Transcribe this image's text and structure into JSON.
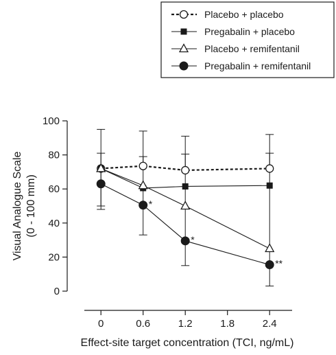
{
  "chart_data": {
    "type": "line",
    "title": "",
    "xlabel": "Effect-site target concentration (TCI, ng/mL)",
    "ylabel_lines": [
      "Visual Analogue Scale",
      "(0 - 100 mm)"
    ],
    "x_ticks": [
      "0",
      "0.6",
      "1.2",
      "1.8",
      "2.4"
    ],
    "y_ticks": [
      "0",
      "20",
      "40",
      "60",
      "80",
      "100"
    ],
    "xlim": [
      -0.48,
      2.72
    ],
    "ylim": [
      0,
      100
    ],
    "grid": false,
    "legend_position": "top-right",
    "series": [
      {
        "name": "Placebo + placebo",
        "marker": "open-circle",
        "line": "dashed",
        "x": [
          0,
          0.6,
          1.2,
          2.4
        ],
        "y": [
          72,
          73.5,
          71,
          72
        ],
        "err_upper": [
          95,
          94,
          91,
          92
        ],
        "err_lower": [
          50,
          null,
          null,
          null
        ],
        "annotations": [
          "",
          "",
          "",
          ""
        ]
      },
      {
        "name": "Pregabalin + placebo",
        "marker": "filled-square",
        "line": "solid",
        "x": [
          0,
          0.6,
          1.2,
          2.4
        ],
        "y": [
          72,
          60.5,
          61.5,
          62
        ],
        "err_upper": [
          null,
          null,
          null,
          null
        ],
        "err_lower": [
          null,
          null,
          null,
          null
        ],
        "annotations": [
          "",
          "",
          "",
          ""
        ]
      },
      {
        "name": "Placebo + remifentanil",
        "marker": "open-triangle",
        "line": "solid",
        "x": [
          0,
          0.6,
          1.2,
          2.4
        ],
        "y": [
          72,
          62,
          50,
          25
        ],
        "err_upper": [
          null,
          null,
          null,
          null
        ],
        "err_lower": [
          null,
          null,
          null,
          null
        ],
        "annotations": [
          "",
          "",
          "",
          ""
        ]
      },
      {
        "name": "Pregabalin + remifentanil",
        "marker": "filled-circle",
        "line": "solid",
        "x": [
          0,
          0.6,
          1.2,
          2.4
        ],
        "y": [
          63,
          50.5,
          29.5,
          15.5
        ],
        "err_upper": [
          81,
          79,
          80.5,
          81
        ],
        "err_lower": [
          48,
          33,
          15,
          3
        ],
        "annotations": [
          "",
          "*",
          "*",
          "**"
        ]
      }
    ]
  },
  "colors": {
    "ink": "#1a1a1a",
    "background": "#ffffff"
  }
}
